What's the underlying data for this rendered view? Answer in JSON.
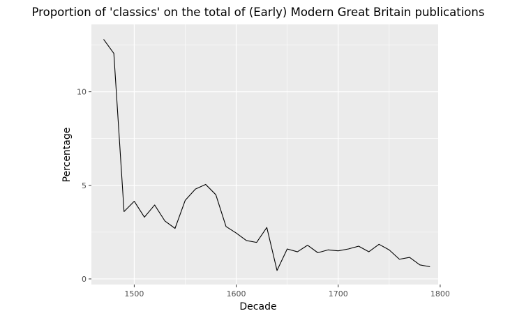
{
  "chart_data": {
    "type": "line",
    "title": "Proportion of 'classics' on the total of (Early) Modern Great Britain publications",
    "xlabel": "Decade",
    "ylabel": "Percentage",
    "xlim": [
      1458,
      1798
    ],
    "ylim": [
      -0.3,
      13.6
    ],
    "x_ticks": [
      1500,
      1600,
      1700,
      1800
    ],
    "y_ticks": [
      0,
      5,
      10
    ],
    "x_minor": [
      1550,
      1650,
      1750
    ],
    "y_minor": [
      2.5,
      7.5,
      12.5
    ],
    "grid": true,
    "legend": "none",
    "colors": {
      "panel_background": "#ebebeb",
      "grid_major": "#ffffff",
      "line": "#000000",
      "tick_text": "#4d4d4d",
      "tick_mark": "#333333"
    },
    "series": [
      {
        "x": [
          1470,
          1480,
          1490,
          1500,
          1510,
          1520,
          1530,
          1540,
          1550,
          1560,
          1570,
          1580,
          1590,
          1600,
          1610,
          1620,
          1630,
          1640,
          1650,
          1660,
          1670,
          1680,
          1690,
          1700,
          1710,
          1720,
          1730,
          1740,
          1750,
          1760,
          1770,
          1780,
          1790
        ],
        "values": [
          12.8,
          12.05,
          3.6,
          4.15,
          3.3,
          3.95,
          3.1,
          2.7,
          4.2,
          4.8,
          5.05,
          4.5,
          2.8,
          2.45,
          2.05,
          1.95,
          2.75,
          0.45,
          1.6,
          1.45,
          1.8,
          1.4,
          1.55,
          1.5,
          1.6,
          1.75,
          1.45,
          1.85,
          1.55,
          1.05,
          1.15,
          0.75,
          0.65
        ]
      }
    ]
  }
}
